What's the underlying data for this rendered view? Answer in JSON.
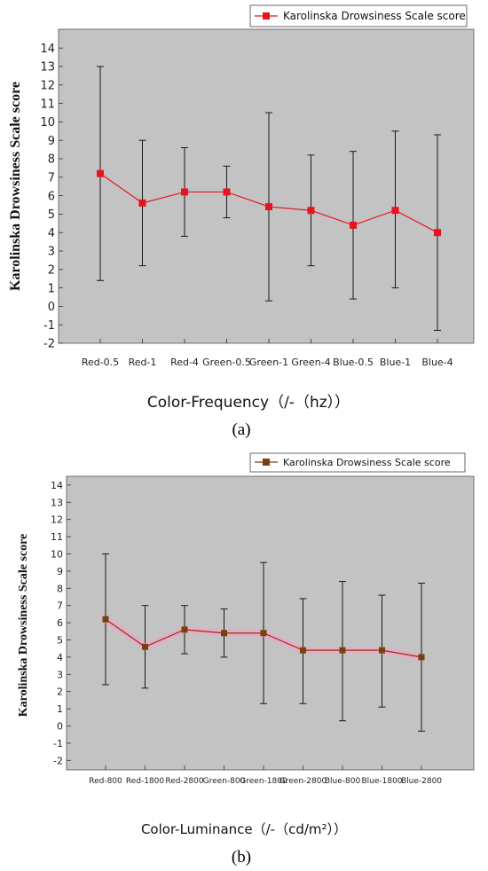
{
  "chart_data": [
    {
      "type": "line",
      "panel_label": "(a)",
      "xlabel": "Color-Frequency（/-（hz））",
      "ylabel": "Karolinska Drowsiness Scale score",
      "legend": "Karolinska Drowsiness Scale score",
      "legend_position": "top-right",
      "ylim": [
        -2.5,
        14.5
      ],
      "yticks": [
        -2,
        -1,
        0,
        1,
        2,
        3,
        4,
        5,
        6,
        7,
        8,
        9,
        10,
        11,
        12,
        13,
        14
      ],
      "grid": false,
      "categories": [
        "Red-0.5",
        "Red-1",
        "Red-4",
        "Green-0.5",
        "Green-1",
        "Green-4",
        "Blue-0.5",
        "Blue-1",
        "Blue-4"
      ],
      "series": [
        {
          "name": "Karolinska Drowsiness Scale score",
          "color": "#e8141c",
          "values": [
            7.2,
            5.6,
            6.2,
            6.2,
            5.4,
            5.2,
            4.4,
            5.2,
            4.0
          ],
          "error_upper": [
            13.0,
            9.0,
            8.6,
            7.6,
            10.5,
            8.2,
            8.4,
            9.5,
            9.3
          ],
          "error_lower": [
            1.4,
            2.2,
            3.8,
            4.8,
            0.3,
            2.2,
            0.4,
            1.0,
            -1.3
          ]
        }
      ]
    },
    {
      "type": "line",
      "panel_label": "(b)",
      "xlabel": "Color-Luminance（/-（cd/m²））",
      "ylabel": "Karolinska Drowsiness Scale score",
      "legend": "Karolinska Drowsiness Scale score",
      "legend_position": "top-right",
      "ylim": [
        -2.5,
        14.5
      ],
      "yticks": [
        -2,
        -1,
        0,
        1,
        2,
        3,
        4,
        5,
        6,
        7,
        8,
        9,
        10,
        11,
        12,
        13,
        14
      ],
      "grid": false,
      "categories": [
        "Red-800",
        "Red-1800",
        "Red-2800",
        "Green-800",
        "Green-1800",
        "Green-2800",
        "Blue-800",
        "Blue-1800",
        "Blue-2800"
      ],
      "series": [
        {
          "name": "Karolinska Drowsiness Scale score",
          "color": "#7a3f10",
          "values": [
            6.2,
            4.6,
            5.6,
            5.4,
            5.4,
            4.4,
            4.4,
            4.4,
            4.0
          ],
          "error_upper": [
            10.0,
            7.0,
            7.0,
            6.8,
            9.5,
            7.4,
            8.4,
            7.6,
            8.3
          ],
          "error_lower": [
            2.4,
            2.2,
            4.2,
            4.0,
            1.3,
            1.3,
            0.3,
            1.1,
            -0.3
          ]
        }
      ]
    }
  ],
  "colors": {
    "plot_background": "#c3c3c3",
    "marker_a": "#e8141c",
    "marker_b": "#7a3f10",
    "line_b_glow": "#f5a3c8",
    "error_bar": "#1a1a1a"
  }
}
